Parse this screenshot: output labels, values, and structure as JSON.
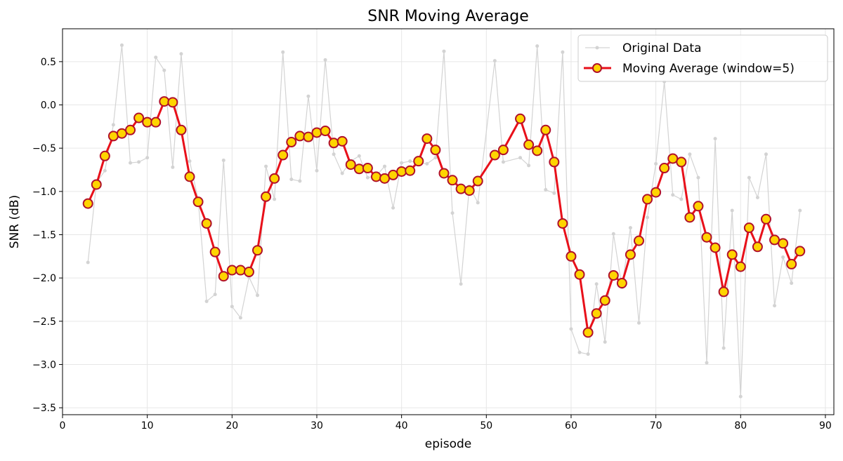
{
  "chart_data": {
    "type": "line",
    "title": "SNR Moving Average",
    "xlabel": "episode",
    "ylabel": "SNR (dB)",
    "xlim": [
      0,
      91
    ],
    "ylim": [
      -3.58,
      0.88
    ],
    "xticks": [
      0,
      10,
      20,
      30,
      40,
      50,
      60,
      70,
      80,
      90
    ],
    "yticks": [
      0.5,
      0.0,
      -0.5,
      -1.0,
      -1.5,
      -2.0,
      -2.5,
      -3.0,
      -3.5
    ],
    "ytick_labels": [
      "0.5",
      "0.0",
      "−0.5",
      "−1.0",
      "−1.5",
      "−2.0",
      "−2.5",
      "−3.0",
      "−3.5"
    ],
    "grid": true,
    "legend_position": "top-right",
    "series": [
      {
        "name": "Original Data",
        "color": "#d3d3d3",
        "x": [
          3,
          4,
          5,
          6,
          7,
          8,
          9,
          10,
          11,
          12,
          13,
          14,
          15,
          16,
          17,
          18,
          19,
          20,
          21,
          22,
          23,
          24,
          25,
          26,
          27,
          28,
          29,
          30,
          31,
          32,
          33,
          34,
          35,
          36,
          37,
          38,
          39,
          40,
          41,
          42,
          43,
          44,
          45,
          46,
          47,
          48,
          49,
          51,
          52,
          54,
          55,
          56,
          57,
          58,
          59,
          60,
          61,
          62,
          63,
          64,
          65,
          66,
          67,
          68,
          69,
          70,
          71,
          72,
          73,
          74,
          75,
          76,
          77,
          78,
          79,
          80,
          81,
          82,
          83,
          84,
          85,
          86,
          87
        ],
        "y": [
          -1.82,
          -0.9,
          -0.76,
          -0.23,
          0.69,
          -0.67,
          -0.66,
          -0.61,
          0.55,
          0.4,
          -0.72,
          0.59,
          -0.65,
          -1.09,
          -2.27,
          -2.19,
          -0.64,
          -2.33,
          -2.46,
          -1.99,
          -2.2,
          -0.71,
          -1.09,
          0.61,
          -0.86,
          -0.88,
          0.1,
          -0.76,
          0.52,
          -0.57,
          -0.79,
          -0.65,
          -0.59,
          -0.84,
          -0.82,
          -0.71,
          -1.19,
          -0.67,
          -0.65,
          -0.67,
          -0.68,
          -0.61,
          0.62,
          -1.25,
          -2.07,
          -0.94,
          -1.13,
          0.51,
          -0.66,
          -0.61,
          -0.7,
          0.68,
          -0.98,
          -1.02,
          0.61,
          -2.59,
          -2.86,
          -2.88,
          -2.07,
          -2.74,
          -1.49,
          -2.11,
          -1.42,
          -2.52,
          -1.3,
          -0.68,
          0.27,
          -1.04,
          -1.09,
          -0.57,
          -0.84,
          -2.98,
          -0.39,
          -2.81,
          -1.22,
          -3.37,
          -0.84,
          -1.07,
          -0.57,
          -2.32,
          -1.76,
          -2.06,
          -1.22
        ]
      },
      {
        "name": "Moving Average (window=5)",
        "color": "#e8101a",
        "marker_face": "#ffd400",
        "marker_edge": "#b0102a",
        "x": [
          3,
          4,
          5,
          6,
          7,
          8,
          9,
          10,
          11,
          12,
          13,
          14,
          15,
          16,
          17,
          18,
          19,
          20,
          21,
          22,
          23,
          24,
          25,
          26,
          27,
          28,
          29,
          30,
          31,
          32,
          33,
          34,
          35,
          36,
          37,
          38,
          39,
          40,
          41,
          42,
          43,
          44,
          45,
          46,
          47,
          48,
          49,
          51,
          52,
          54,
          55,
          56,
          57,
          58,
          59,
          60,
          61,
          62,
          63,
          64,
          65,
          66,
          67,
          68,
          69,
          70,
          71,
          72,
          73,
          74,
          75,
          76,
          77,
          78,
          79,
          80,
          81,
          82,
          83,
          84,
          85,
          86,
          87
        ],
        "y": [
          -1.14,
          -0.92,
          -0.59,
          -0.36,
          -0.33,
          -0.29,
          -0.15,
          -0.2,
          -0.2,
          0.04,
          0.03,
          -0.29,
          -0.83,
          -1.12,
          -1.37,
          -1.7,
          -1.98,
          -1.91,
          -1.91,
          -1.93,
          -1.68,
          -1.06,
          -0.85,
          -0.58,
          -0.43,
          -0.36,
          -0.37,
          -0.32,
          -0.3,
          -0.44,
          -0.42,
          -0.69,
          -0.74,
          -0.73,
          -0.83,
          -0.85,
          -0.81,
          -0.77,
          -0.76,
          -0.65,
          -0.39,
          -0.52,
          -0.79,
          -0.87,
          -0.97,
          -0.99,
          -0.88,
          -0.58,
          -0.52,
          -0.16,
          -0.46,
          -0.53,
          -0.29,
          -0.66,
          -1.37,
          -1.75,
          -1.96,
          -2.63,
          -2.41,
          -2.26,
          -1.97,
          -2.06,
          -1.73,
          -1.57,
          -1.09,
          -1.01,
          -0.73,
          -0.62,
          -0.66,
          -1.3,
          -1.17,
          -1.53,
          -1.65,
          -2.16,
          -1.73,
          -1.87,
          -1.42,
          -1.64,
          -1.32,
          -1.56,
          -1.6,
          -1.84,
          -1.69
        ]
      }
    ]
  }
}
